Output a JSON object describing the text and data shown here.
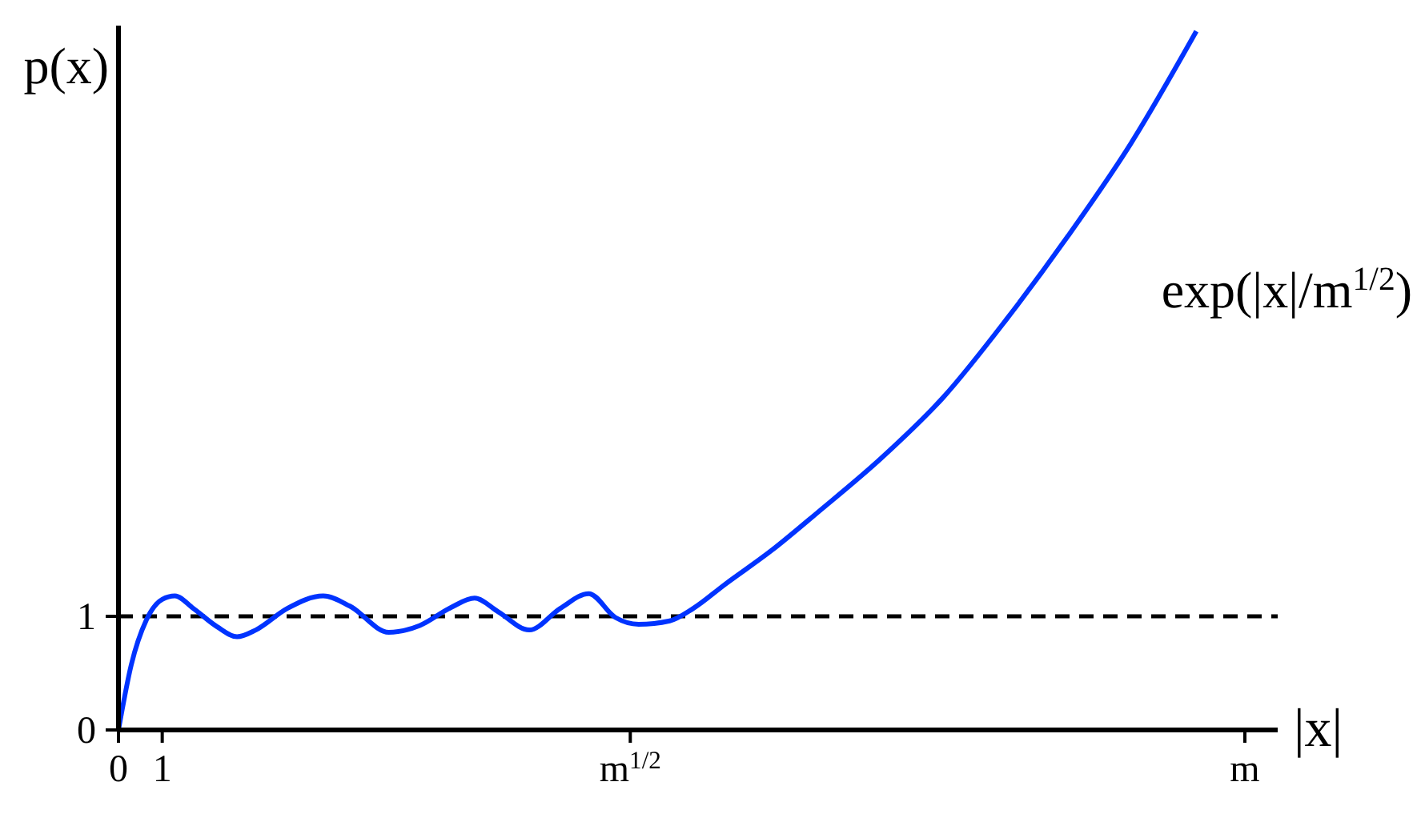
{
  "chart_data": {
    "type": "line",
    "xlabel": "|x|",
    "ylabel": "p(x)",
    "x": [
      0,
      0.29,
      0.64,
      1,
      1.29,
      1.71,
      2.25,
      2.71,
      3.14,
      3.86,
      4.68,
      5.29,
      6.18,
      6.89,
      7.61,
      8.14,
      8.68,
      9.39,
      10.1,
      10.75,
      11.36,
      11.89,
      12.6,
      13.14,
      13.86,
      14.93,
      16,
      17.43,
      18.86,
      20.29,
      21.71,
      23.14,
      24.64
    ],
    "series": [
      {
        "color": "#0033ff",
        "values": [
          0,
          0.57,
          0.97,
          1.15,
          1.18,
          1.07,
          0.91,
          0.82,
          0.88,
          1.07,
          1.18,
          1.09,
          0.86,
          0.92,
          1.08,
          1.16,
          1.04,
          0.88,
          1.07,
          1.2,
          0.99,
          0.93,
          0.96,
          1.07,
          1.28,
          1.58,
          1.92,
          2.39,
          2.93,
          3.61,
          4.35,
          5.16,
          6.15
        ]
      }
    ],
    "xlim": [
      0,
      26.5
    ],
    "ylim": [
      0,
      6.2
    ],
    "xticks": [
      0,
      1,
      {
        "value": 11.7,
        "label": "m$^{1/2}$"
      },
      {
        "value": 25.75,
        "label": "m"
      }
    ],
    "yticks": [
      0,
      1
    ],
    "ref_lines": [
      {
        "axis": "y",
        "value": 1,
        "color": "#000000",
        "line_style": "dashed"
      }
    ],
    "annotations": [
      "exp(|x|/m$^{1/2}$)"
    ],
    "grid": false,
    "legend": false,
    "marker": "none",
    "line_style": "solid"
  }
}
